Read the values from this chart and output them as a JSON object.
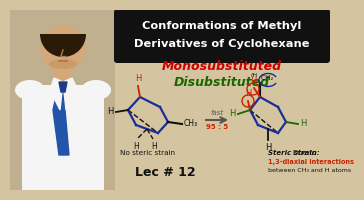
{
  "bg_color": "#d4c5a0",
  "person_bg": "#c8b88a",
  "title_box_color": "#111111",
  "title_line1": "Conformations of Methyl",
  "title_line2": "Derivatives of Cyclohexane",
  "title_font_color": "#ffffff",
  "mono_label": "Monosubstituted",
  "mono_color": "#cc0000",
  "di_label": "Disubstituted",
  "di_color": "#1a6600",
  "no_steric_label": "No steric strain",
  "steric_label_bold": "Steric strain:",
  "steric_desc1": "Due to",
  "steric_desc2": "1,3-diaxial interactions",
  "steric_desc3": "between CH₃ and H atoms",
  "ratio_label": "95 : 5",
  "fast_label": "fast",
  "lec_label": "Lec # 12",
  "lec_color": "#111111",
  "arrow_color": "#555555",
  "ratio_color": "#cc2200",
  "ch3_color": "#111111",
  "bond_blue": "#1a2d99",
  "bond_dark": "#111111",
  "h_red": "#cc2200",
  "h_black": "#111111",
  "h_green": "#1a6600",
  "skin_color": "#d4a878",
  "hair_color": "#2a1a08",
  "shirt_color": "#f5f5f5",
  "tie_color": "#2255aa",
  "person_bg_color": "#c0b090"
}
